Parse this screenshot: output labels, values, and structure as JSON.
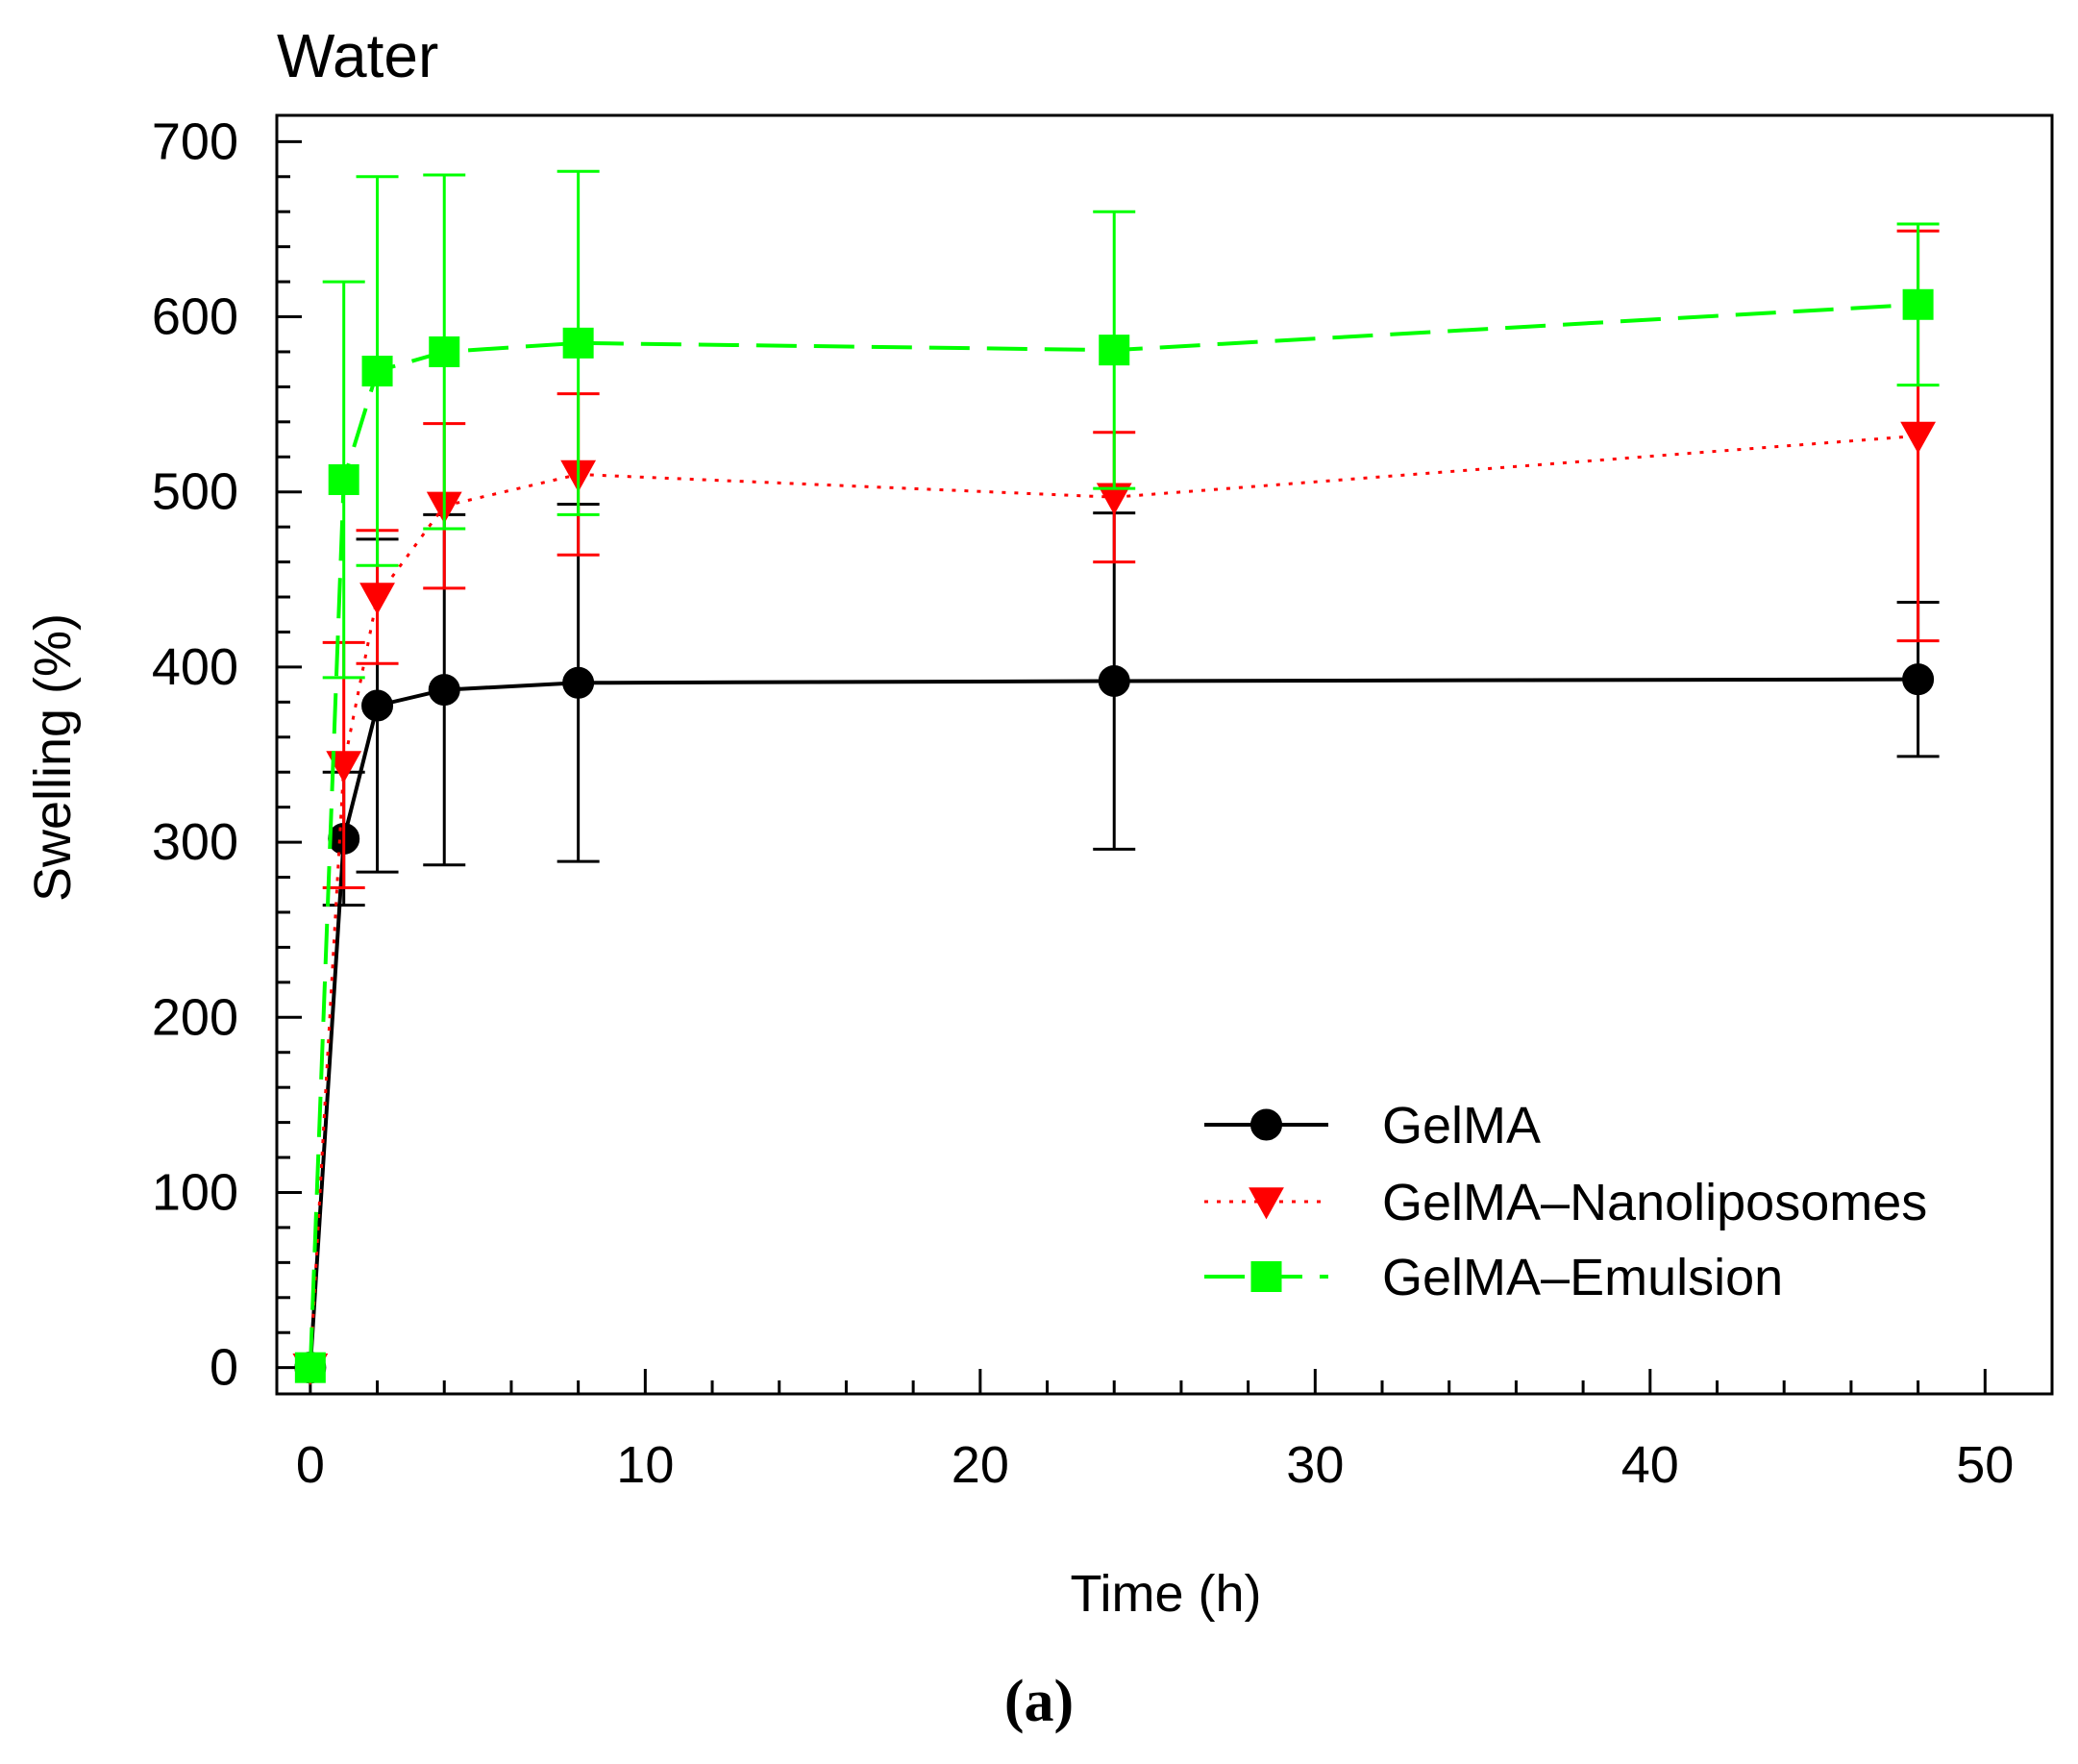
{
  "chart_data": {
    "type": "line",
    "title": "Water",
    "xlabel": "Time (h)",
    "ylabel": "Swelling (%)",
    "panel_label": "a",
    "xlim": [
      -1,
      52
    ],
    "ylim": [
      -15,
      715
    ],
    "xticks": [
      0,
      10,
      20,
      30,
      40,
      50
    ],
    "yticks": [
      0,
      100,
      200,
      300,
      400,
      500,
      600,
      700
    ],
    "x_minor_step": 2,
    "y_minor_step": 20,
    "grid": false,
    "legend_position": "bottom-right",
    "x": [
      0,
      1,
      2,
      4,
      8,
      24,
      48
    ],
    "series": [
      {
        "name": "GelMA",
        "color": "#000000",
        "line_style": "solid",
        "marker": "circle",
        "values": [
          0,
          302,
          378,
          387,
          391,
          392,
          393
        ],
        "error": [
          0,
          38,
          95,
          100,
          102,
          96,
          44
        ]
      },
      {
        "name": "GelMA–Nanoliposomes",
        "color": "#ff0000",
        "line_style": "dotted",
        "marker": "triangle-down",
        "values": [
          0,
          344,
          440,
          492,
          510,
          497,
          532
        ],
        "error": [
          0,
          70,
          38,
          47,
          46,
          37,
          117
        ]
      },
      {
        "name": "GelMA–Emulsion",
        "color": "#00ff00",
        "line_style": "dashed",
        "marker": "square",
        "values": [
          0,
          507,
          569,
          580,
          585,
          581,
          607
        ],
        "error": [
          0,
          113,
          111,
          101,
          98,
          79,
          46
        ]
      }
    ]
  }
}
